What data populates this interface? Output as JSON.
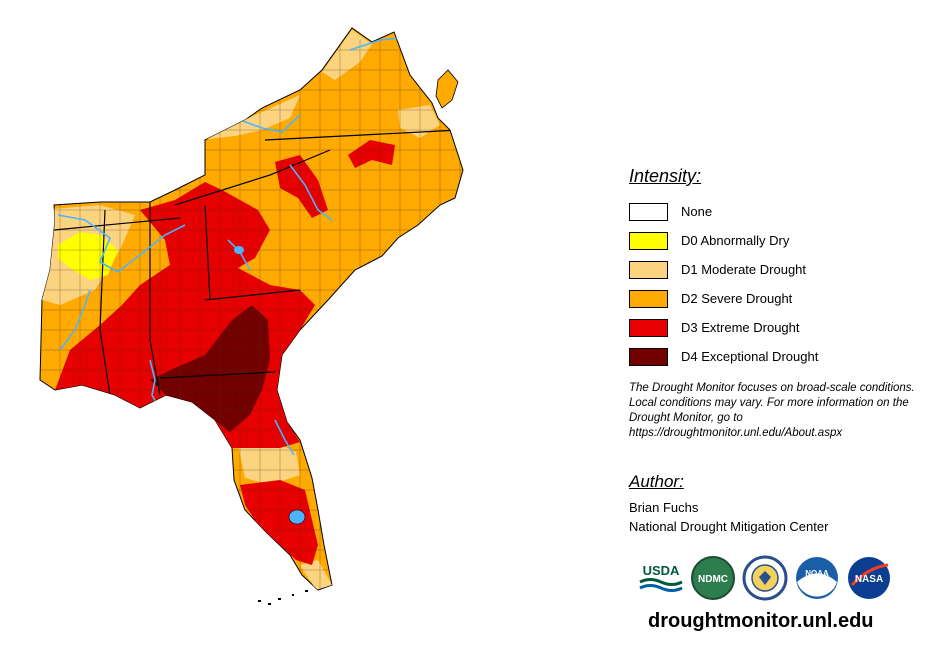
{
  "legend": {
    "title": "Intensity:",
    "items": [
      {
        "label": "None",
        "color": "#ffffff"
      },
      {
        "label": "D0 Abnormally Dry",
        "color": "#ffff00"
      },
      {
        "label": "D1 Moderate Drought",
        "color": "#fcd37f"
      },
      {
        "label": "D2 Severe Drought",
        "color": "#ffaa00"
      },
      {
        "label": "D3 Extreme Drought",
        "color": "#e60000"
      },
      {
        "label": "D4 Exceptional Drought",
        "color": "#730000"
      }
    ]
  },
  "note": "The Drought Monitor focuses on broad-scale conditions. Local conditions may vary. For more information on the Drought Monitor, go to https://droughtmonitor.unl.edu/About.aspx",
  "author": {
    "title": "Author:",
    "name": "Brian Fuchs",
    "org": "National Drought Mitigation Center"
  },
  "logos": {
    "usda": "USDA",
    "ndmc": "NDMC",
    "noaa": "NOAA",
    "nasa": "NASA",
    "icons": [
      "usda-logo",
      "ndmc-logo",
      "doc-seal-logo",
      "noaa-logo",
      "nasa-logo"
    ]
  },
  "website": "droughtmonitor.unl.edu",
  "colors": {
    "water": "#4db3ff",
    "county_lines": "#4a2a10"
  }
}
